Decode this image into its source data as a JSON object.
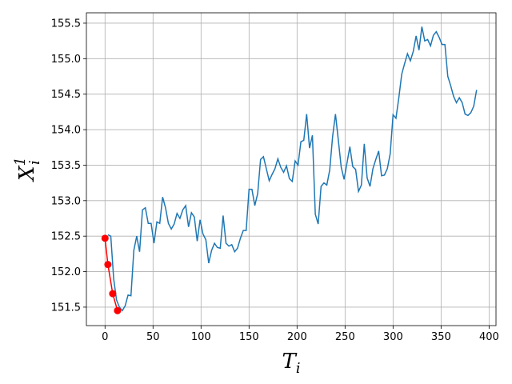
{
  "chart_data": {
    "type": "line",
    "xlabel": {
      "base": "T",
      "sub": "i"
    },
    "ylabel": {
      "base": "X",
      "sub": "i",
      "sup": "1"
    },
    "xlim": [
      -19.4,
      407.2
    ],
    "ylim": [
      151.24,
      155.646
    ],
    "xticks": [
      0,
      50,
      100,
      150,
      200,
      250,
      300,
      350,
      400
    ],
    "yticks": [
      151.5,
      {
        "value": 152,
        "label": "152.0"
      },
      152.5,
      {
        "value": 153,
        "label": "153.0"
      },
      153.5,
      {
        "value": 154,
        "label": "154.0"
      },
      154.5,
      {
        "value": 155,
        "label": "155.0"
      },
      155.5
    ],
    "grid": true,
    "series": [
      {
        "color": "#1f77b4",
        "marker": false,
        "x": [
          3,
          6,
          9,
          12,
          15,
          18,
          21,
          24,
          27,
          30,
          33,
          36,
          39,
          42,
          45,
          48,
          51,
          54,
          57,
          60,
          63,
          66,
          69,
          72,
          75,
          78,
          81,
          84,
          87,
          90,
          93,
          96,
          99,
          102,
          105,
          108,
          111,
          114,
          117,
          120,
          123,
          126,
          129,
          132,
          135,
          138,
          141,
          144,
          147,
          150,
          153,
          156,
          159,
          162,
          165,
          168,
          171,
          174,
          177,
          180,
          183,
          186,
          189,
          192,
          195,
          198,
          201,
          204,
          207,
          210,
          213,
          216,
          219,
          222,
          225,
          228,
          231,
          234,
          237,
          240,
          243,
          246,
          249,
          252,
          255,
          258,
          261,
          264,
          267,
          270,
          273,
          276,
          279,
          282,
          285,
          288,
          291,
          294,
          297,
          300,
          303,
          306,
          309,
          312,
          315,
          318,
          321,
          324,
          327,
          330,
          333,
          336,
          339,
          342,
          345,
          348,
          351,
          354,
          357,
          360,
          363,
          366,
          369,
          372,
          375,
          378,
          381,
          384,
          387
        ],
        "values": [
          152.52,
          152.5,
          151.9,
          151.6,
          151.5,
          151.45,
          151.52,
          151.67,
          151.66,
          152.3,
          152.5,
          152.28,
          152.87,
          152.9,
          152.68,
          152.68,
          152.4,
          152.7,
          152.68,
          153.05,
          152.9,
          152.68,
          152.6,
          152.67,
          152.82,
          152.75,
          152.87,
          152.93,
          152.63,
          152.83,
          152.77,
          152.43,
          152.73,
          152.53,
          152.45,
          152.12,
          152.3,
          152.4,
          152.34,
          152.33,
          152.79,
          152.4,
          152.36,
          152.38,
          152.28,
          152.33,
          152.47,
          152.58,
          152.58,
          153.16,
          153.16,
          152.93,
          153.1,
          153.58,
          153.62,
          153.45,
          153.28,
          153.37,
          153.45,
          153.59,
          153.47,
          153.4,
          153.49,
          153.31,
          153.27,
          153.56,
          153.5,
          153.83,
          153.85,
          154.22,
          153.74,
          153.92,
          152.81,
          152.67,
          153.2,
          153.25,
          153.22,
          153.43,
          153.9,
          154.22,
          153.85,
          153.47,
          153.3,
          153.53,
          153.76,
          153.48,
          153.44,
          153.13,
          153.22,
          153.8,
          153.32,
          153.2,
          153.45,
          153.58,
          153.7,
          153.35,
          153.36,
          153.45,
          153.66,
          154.21,
          154.16,
          154.45,
          154.78,
          154.93,
          155.07,
          154.97,
          155.1,
          155.32,
          155.12,
          155.45,
          155.25,
          155.27,
          155.18,
          155.33,
          155.38,
          155.3,
          155.2,
          155.2,
          154.75,
          154.62,
          154.47,
          154.38,
          154.45,
          154.38,
          154.22,
          154.2,
          154.24,
          154.33,
          154.56
        ]
      },
      {
        "color": "#ff0000",
        "marker": true,
        "x": [
          0,
          3,
          8,
          13
        ],
        "values": [
          152.47,
          152.1,
          151.69,
          151.45
        ]
      }
    ]
  }
}
